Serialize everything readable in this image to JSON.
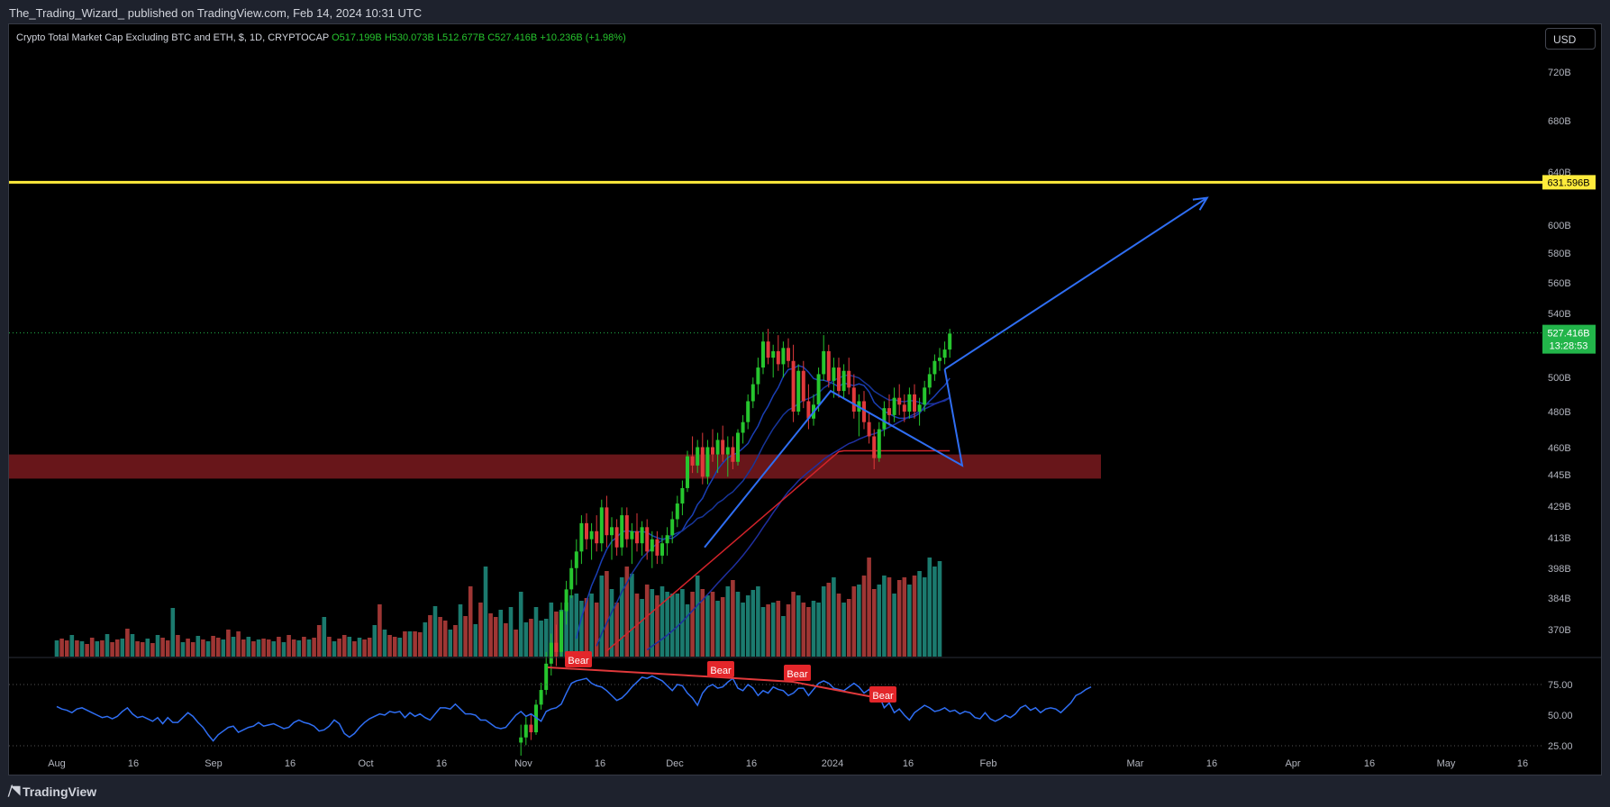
{
  "header": {
    "publish_line": "The_Trading_Wizard_ published on TradingView.com, Feb 14, 2024 10:31 UTC"
  },
  "symbol": {
    "name": "Crypto Total Market Cap Excluding BTC and ETH, $, 1D, CRYPTOCAP",
    "open": "O517.199B",
    "high": "H530.073B",
    "low": "L512.677B",
    "close": "C527.416B",
    "change": "+10.236B (+1.98%)"
  },
  "currency_button": "USD",
  "footer": {
    "logo": "TradingView"
  },
  "colors": {
    "up": "#26c62e",
    "down": "#e0393b",
    "vol_up": "#1b7a6e",
    "vol_down": "#9e3634",
    "rsi": "#2f6ef3",
    "resistance": "#ffeb3b",
    "zone": "#7a1a1f",
    "arrow": "#2f6ef3",
    "price_tag": "#22b54a"
  },
  "chart_data": {
    "type": "candlestick",
    "price_axis": {
      "ticks": [
        "720B",
        "680B",
        "640B",
        "600B",
        "580B",
        "560B",
        "540B",
        "500B",
        "480B",
        "460B",
        "445B",
        "429B",
        "413B",
        "398B",
        "384B",
        "370B"
      ],
      "scale": "log"
    },
    "rsi_axis": {
      "ticks": [
        "75.00",
        "50.00",
        "25.00"
      ]
    },
    "time_axis": {
      "labels": [
        "Aug",
        "16",
        "Sep",
        "16",
        "Oct",
        "16",
        "Nov",
        "16",
        "Dec",
        "16",
        "2024",
        "16",
        "Feb",
        "Mar",
        "16",
        "Apr",
        "16",
        "May",
        "16"
      ]
    },
    "last_price": {
      "value": "527.416B",
      "countdown": "13:28:53"
    },
    "resistance_line": {
      "value": 631.596,
      "label": "631.596B"
    },
    "support_zone": {
      "low": 443,
      "high": 456
    },
    "projection_arrow": {
      "from": {
        "date": "2024-02-14",
        "value": 505
      },
      "to": {
        "date": "2024-03-16",
        "value": 620
      }
    },
    "rsi_divergence_labels": [
      "Bear",
      "Bear",
      "Bear",
      "Bear"
    ],
    "candles_start": "2023-11-01",
    "candles": [
      [
        323,
        330,
        318,
        325
      ],
      [
        325,
        333,
        322,
        330
      ],
      [
        330,
        334,
        324,
        327
      ],
      [
        327,
        340,
        326,
        338
      ],
      [
        338,
        347,
        336,
        344
      ],
      [
        344,
        360,
        342,
        355
      ],
      [
        355,
        368,
        350,
        364
      ],
      [
        364,
        372,
        354,
        360
      ],
      [
        360,
        382,
        358,
        378
      ],
      [
        378,
        392,
        372,
        388
      ],
      [
        388,
        402,
        384,
        398
      ],
      [
        398,
        412,
        390,
        406
      ],
      [
        406,
        424,
        400,
        420
      ],
      [
        420,
        425,
        407,
        412
      ],
      [
        412,
        420,
        402,
        416
      ],
      [
        416,
        424,
        406,
        410
      ],
      [
        410,
        432,
        406,
        428
      ],
      [
        428,
        434,
        408,
        414
      ],
      [
        414,
        423,
        402,
        418
      ],
      [
        418,
        422,
        404,
        408
      ],
      [
        408,
        428,
        404,
        424
      ],
      [
        424,
        428,
        408,
        412
      ],
      [
        412,
        420,
        400,
        416
      ],
      [
        416,
        425,
        406,
        410
      ],
      [
        410,
        421,
        404,
        418
      ],
      [
        418,
        422,
        402,
        406
      ],
      [
        406,
        416,
        398,
        412
      ],
      [
        412,
        416,
        400,
        404
      ],
      [
        404,
        414,
        400,
        410
      ],
      [
        410,
        418,
        404,
        414
      ],
      [
        414,
        426,
        410,
        422
      ],
      [
        422,
        434,
        418,
        430
      ],
      [
        430,
        442,
        424,
        438
      ],
      [
        438,
        458,
        436,
        455
      ],
      [
        455,
        466,
        446,
        450
      ],
      [
        450,
        464,
        446,
        460
      ],
      [
        460,
        468,
        440,
        444
      ],
      [
        444,
        464,
        440,
        460
      ],
      [
        460,
        470,
        452,
        456
      ],
      [
        456,
        468,
        446,
        464
      ],
      [
        464,
        472,
        452,
        456
      ],
      [
        456,
        466,
        444,
        460
      ],
      [
        460,
        466,
        448,
        452
      ],
      [
        452,
        470,
        450,
        468
      ],
      [
        468,
        478,
        462,
        474
      ],
      [
        474,
        490,
        470,
        486
      ],
      [
        486,
        500,
        482,
        496
      ],
      [
        496,
        512,
        490,
        506
      ],
      [
        506,
        528,
        502,
        522
      ],
      [
        522,
        530,
        508,
        512
      ],
      [
        512,
        520,
        500,
        516
      ],
      [
        516,
        526,
        504,
        508
      ],
      [
        508,
        522,
        500,
        518
      ],
      [
        518,
        524,
        506,
        510
      ],
      [
        510,
        520,
        474,
        480
      ],
      [
        480,
        508,
        478,
        504
      ],
      [
        504,
        510,
        482,
        486
      ],
      [
        486,
        496,
        470,
        476
      ],
      [
        476,
        490,
        472,
        484
      ],
      [
        484,
        506,
        480,
        502
      ],
      [
        502,
        526,
        498,
        516
      ],
      [
        516,
        520,
        494,
        498
      ],
      [
        498,
        512,
        488,
        506
      ],
      [
        506,
        512,
        488,
        492
      ],
      [
        492,
        508,
        488,
        504
      ],
      [
        504,
        512,
        490,
        494
      ],
      [
        494,
        502,
        476,
        480
      ],
      [
        480,
        490,
        466,
        486
      ],
      [
        486,
        492,
        470,
        474
      ],
      [
        474,
        480,
        462,
        466
      ],
      [
        466,
        470,
        448,
        454
      ],
      [
        454,
        474,
        452,
        470
      ],
      [
        470,
        486,
        466,
        482
      ],
      [
        482,
        490,
        472,
        478
      ],
      [
        478,
        494,
        474,
        488
      ],
      [
        488,
        496,
        478,
        484
      ],
      [
        484,
        490,
        474,
        480
      ],
      [
        480,
        494,
        476,
        490
      ],
      [
        490,
        496,
        476,
        480
      ],
      [
        480,
        488,
        472,
        484
      ],
      [
        484,
        498,
        480,
        494
      ],
      [
        494,
        506,
        490,
        502
      ],
      [
        502,
        514,
        498,
        510
      ],
      [
        510,
        518,
        504,
        512
      ],
      [
        512,
        522,
        508,
        517
      ],
      [
        517,
        530,
        512,
        527
      ]
    ],
    "volume_history": [
      18,
      20,
      18,
      24,
      18,
      17,
      14,
      21,
      17,
      18,
      25,
      16,
      19,
      20,
      31,
      25,
      17,
      16,
      20,
      15,
      24,
      21,
      18,
      54,
      24,
      16,
      20,
      16,
      23,
      19,
      17,
      23,
      21,
      19,
      30,
      22,
      28,
      19,
      22,
      17,
      19,
      20,
      19,
      17,
      22,
      16,
      24,
      19,
      18,
      22,
      19,
      21,
      35,
      44,
      22,
      17,
      20,
      24,
      22,
      17,
      21,
      19,
      21,
      35,
      58,
      30,
      24,
      22,
      21,
      28,
      28,
      28,
      27,
      38,
      46,
      56,
      44,
      40,
      30,
      35,
      58,
      45,
      78,
      36,
      60,
      100,
      48,
      44,
      52,
      37,
      55,
      30,
      72,
      38,
      42,
      55,
      40,
      42,
      60,
      50,
      52,
      60,
      68,
      70,
      62,
      65,
      70,
      60,
      90,
      95,
      75,
      60,
      88,
      100,
      92,
      70,
      64,
      80,
      75,
      68,
      78,
      72,
      70,
      70,
      75,
      58,
      72,
      90,
      75,
      68,
      72,
      62,
      66,
      78,
      85,
      72,
      60,
      68,
      74,
      78,
      55,
      58,
      60,
      62,
      45,
      58,
      72,
      68,
      60,
      55,
      62,
      60,
      78,
      82,
      88,
      70,
      60,
      64,
      78,
      80,
      90,
      110,
      75,
      80,
      90,
      88,
      70,
      85,
      88,
      80,
      90,
      95,
      88,
      110,
      100,
      106
    ],
    "rsi": [
      57,
      55,
      54,
      52,
      55,
      56,
      54,
      52,
      50,
      48,
      49,
      47,
      49,
      53,
      56,
      51,
      48,
      49,
      47,
      45,
      48,
      43,
      48,
      44,
      44,
      48,
      52,
      49,
      44,
      40,
      34,
      29,
      34,
      37,
      40,
      41,
      36,
      38,
      40,
      41,
      44,
      41,
      42,
      43,
      41,
      39,
      40,
      44,
      46,
      44,
      43,
      41,
      37,
      38,
      41,
      46,
      43,
      35,
      32,
      35,
      40,
      44,
      47,
      49,
      51,
      50,
      53,
      52,
      53,
      48,
      52,
      49,
      51,
      48,
      46,
      51,
      56,
      56,
      55,
      59,
      55,
      51,
      51,
      50,
      46,
      46,
      43,
      40,
      39,
      40,
      45,
      50,
      53,
      49,
      51,
      48,
      45,
      53,
      55,
      56,
      59,
      68,
      76,
      78,
      79,
      80,
      76,
      74,
      73,
      70,
      66,
      62,
      64,
      68,
      73,
      77,
      81,
      80,
      82,
      80,
      78,
      74,
      70,
      75,
      74,
      68,
      64,
      58,
      68,
      73,
      75,
      72,
      73,
      77,
      80,
      72,
      70,
      75,
      72,
      66,
      70,
      68,
      73,
      71,
      70,
      66,
      68,
      72,
      72,
      66,
      71,
      76,
      78,
      76,
      72,
      71,
      70,
      73,
      76,
      73,
      68,
      71,
      63,
      66,
      56,
      60,
      52,
      55,
      50,
      46,
      52,
      55,
      58,
      56,
      53,
      54,
      56,
      53,
      54,
      51,
      53,
      52,
      48,
      47,
      52,
      47,
      45,
      47,
      50,
      48,
      51,
      56,
      58,
      54,
      56,
      52,
      55,
      56,
      55,
      52,
      56,
      60,
      66,
      68,
      71,
      73
    ]
  }
}
